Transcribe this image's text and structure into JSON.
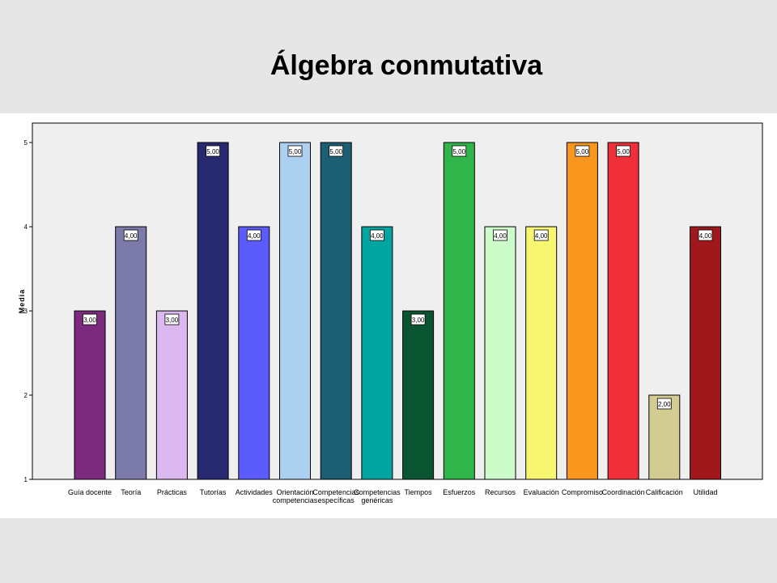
{
  "page": {
    "title": "Álgebra conmutativa"
  },
  "chart_data": {
    "type": "bar",
    "ylabel": "Media",
    "xlabel": "",
    "ylim": [
      1,
      5
    ],
    "yticks": [
      "1",
      "2",
      "3",
      "4",
      "5"
    ],
    "grid": false,
    "categories": [
      "Guía docente",
      "Teoría",
      "Prácticas",
      "Tutorías",
      "Actividades",
      "Orientación competencias",
      "Competencias específicas",
      "Competencias genéricas",
      "Tiempos",
      "Esfuerzos",
      "Recursos",
      "Evaluación",
      "Compromiso",
      "Coordinación",
      "Calificación",
      "Utilidad"
    ],
    "category_lines": [
      [
        "Guía docente"
      ],
      [
        "Teoría"
      ],
      [
        "Prácticas"
      ],
      [
        "Tutorías"
      ],
      [
        "Actividades"
      ],
      [
        "Orientación",
        "competencias"
      ],
      [
        "Competencias",
        "específicas"
      ],
      [
        "Competencias",
        "genéricas"
      ],
      [
        "Tiempos"
      ],
      [
        "Esfuerzos"
      ],
      [
        "Recursos"
      ],
      [
        "Evaluación"
      ],
      [
        "Compromiso"
      ],
      [
        "Coordinación"
      ],
      [
        "Calificación"
      ],
      [
        "Utilidad"
      ]
    ],
    "values": [
      3,
      4,
      3,
      5,
      4,
      5,
      5,
      4,
      3,
      5,
      4,
      4,
      5,
      5,
      2,
      4
    ],
    "value_labels": [
      "3,00",
      "4,00",
      "3,00",
      "5,00",
      "4,00",
      "5,00",
      "5,00",
      "4,00",
      "3,00",
      "5,00",
      "4,00",
      "4,00",
      "5,00",
      "5,00",
      "2,00",
      "4,00"
    ],
    "colors": [
      "#7b2a7e",
      "#7b7aa8",
      "#dbb8ef",
      "#272a70",
      "#5c5cfc",
      "#acd0ef",
      "#1c5e74",
      "#00a5a2",
      "#0a5531",
      "#2fb54a",
      "#ccfcca",
      "#f8f670",
      "#f9961e",
      "#ef2f3a",
      "#d2cc93",
      "#a0171c"
    ]
  }
}
